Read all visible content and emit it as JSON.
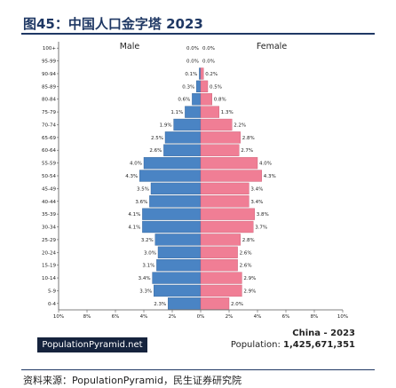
{
  "header": {
    "title": "图45：中国人口金字塔 2023"
  },
  "footer": {
    "source": "资料来源：PopulationPyramid，民生证券研究院"
  },
  "badge": {
    "label": "PopulationPyramid.net"
  },
  "info": {
    "country_year": "China - 2023",
    "population_label": "Population: ",
    "population_value": "1,425,671,351"
  },
  "colors": {
    "male": "#4a84c4",
    "female": "#f07e95",
    "text": "#222222",
    "title": "#1f3864"
  },
  "chart_data": {
    "type": "bar",
    "orientation": "horizontal-diverging",
    "categories": [
      "100+",
      "95-99",
      "90-94",
      "85-89",
      "80-84",
      "75-79",
      "70-74",
      "65-69",
      "60-64",
      "55-59",
      "50-54",
      "45-49",
      "40-44",
      "35-39",
      "30-34",
      "25-29",
      "20-24",
      "15-19",
      "10-14",
      "5-9",
      "0-4"
    ],
    "series": [
      {
        "name": "Male",
        "values": [
          0.0,
          0.0,
          0.1,
          0.3,
          0.6,
          1.1,
          1.9,
          2.5,
          2.6,
          4.0,
          4.3,
          3.5,
          3.6,
          4.1,
          4.1,
          3.2,
          3.0,
          3.1,
          3.4,
          3.3,
          2.3
        ],
        "labels": [
          "0.0%",
          "0.0%",
          "0.1%",
          "0.3%",
          "0.6%",
          "1.1%",
          "1.9%",
          "2.5%",
          "2.6%",
          "4.0%",
          "4.3%",
          "3.5%",
          "3.6%",
          "4.1%",
          "4.1%",
          "3.2%",
          "3.0%",
          "3.1%",
          "3.4%",
          "3.3%",
          "2.3%"
        ]
      },
      {
        "name": "Female",
        "values": [
          0.0,
          0.0,
          0.2,
          0.5,
          0.8,
          1.3,
          2.2,
          2.8,
          2.7,
          4.0,
          4.3,
          3.4,
          3.4,
          3.8,
          3.7,
          2.8,
          2.6,
          2.6,
          2.9,
          2.9,
          2.0
        ],
        "labels": [
          "0.0%",
          "0.0%",
          "0.2%",
          "0.5%",
          "0.8%",
          "1.3%",
          "2.2%",
          "2.8%",
          "2.7%",
          "4.0%",
          "4.3%",
          "3.4%",
          "3.4%",
          "3.8%",
          "3.7%",
          "2.8%",
          "2.6%",
          "2.6%",
          "2.9%",
          "2.9%",
          "2.0%"
        ]
      }
    ],
    "xlim": [
      -10,
      10
    ],
    "xticks": [
      -10,
      -8,
      -6,
      -4,
      -2,
      0,
      2,
      4,
      6,
      8,
      10
    ],
    "xtick_labels": [
      "10%",
      "8%",
      "6%",
      "4%",
      "2%",
      "0%",
      "2%",
      "4%",
      "6%",
      "8%",
      "10%"
    ]
  }
}
